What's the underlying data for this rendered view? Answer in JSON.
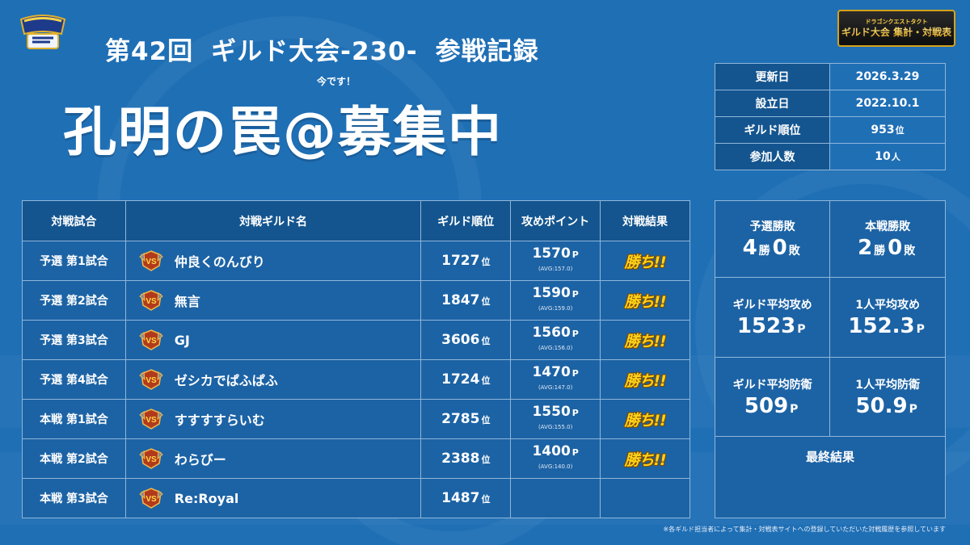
{
  "header": {
    "title_part1": "第42回",
    "title_part2": "ギルド大会-230-",
    "title_part3": "参戦記録",
    "now_label": "今です！",
    "guild_name": "孔明の罠@募集中"
  },
  "logos": {
    "left": "DRAGON QUEST TACT",
    "right_sub": "ドラゴンクエストタクト",
    "right_main": "ギルド大会 集計・対戦表"
  },
  "info": {
    "rows": [
      {
        "label": "更新日",
        "value": "2026.3.29",
        "unit": ""
      },
      {
        "label": "設立日",
        "value": "2022.10.1",
        "unit": ""
      },
      {
        "label": "ギルド順位",
        "value": "953",
        "unit": "位"
      },
      {
        "label": "参加人数",
        "value": "10",
        "unit": "人"
      }
    ]
  },
  "matches": {
    "headers": [
      "対戦試合",
      "対戦ギルド名",
      "ギルド順位",
      "攻めポイント",
      "対戦結果"
    ],
    "rank_unit": "位",
    "point_unit": "P",
    "rows": [
      {
        "match": "予選 第1試合",
        "opponent": "仲良くのんびり",
        "rank": "1727",
        "points": "1570",
        "avg": "(AVG:157.0)",
        "result": "勝ち!!"
      },
      {
        "match": "予選 第2試合",
        "opponent": "無言",
        "rank": "1847",
        "points": "1590",
        "avg": "(AVG:159.0)",
        "result": "勝ち!!"
      },
      {
        "match": "予選 第3試合",
        "opponent": "GJ",
        "rank": "3606",
        "points": "1560",
        "avg": "(AVG:156.0)",
        "result": "勝ち!!"
      },
      {
        "match": "予選 第4試合",
        "opponent": "ゼシカでぱふぱふ",
        "rank": "1724",
        "points": "1470",
        "avg": "(AVG:147.0)",
        "result": "勝ち!!"
      },
      {
        "match": "本戦 第1試合",
        "opponent": "すすすすらいむ",
        "rank": "2785",
        "points": "1550",
        "avg": "(AVG:155.0)",
        "result": "勝ち!!"
      },
      {
        "match": "本戦 第2試合",
        "opponent": "わらびー",
        "rank": "2388",
        "points": "1400",
        "avg": "(AVG:140.0)",
        "result": "勝ち!!"
      },
      {
        "match": "本戦 第3試合",
        "opponent": "Re:Royal",
        "rank": "1487",
        "points": "",
        "avg": "",
        "result": ""
      }
    ]
  },
  "stats": {
    "prelim_label": "予選勝敗",
    "prelim_wins": "4",
    "prelim_losses": "0",
    "main_label": "本戦勝敗",
    "main_wins": "2",
    "main_losses": "0",
    "win_unit": "勝",
    "loss_unit": "敗",
    "guild_avg_atk_label": "ギルド平均攻め",
    "guild_avg_atk": "1523",
    "person_avg_atk_label": "1人平均攻め",
    "person_avg_atk": "152.3",
    "guild_avg_def_label": "ギルド平均防衛",
    "guild_avg_def": "509",
    "person_avg_def_label": "1人平均防衛",
    "person_avg_def": "50.9",
    "point_unit": "P",
    "final_label": "最終結果",
    "final_value": ""
  },
  "footnote": "※各ギルド担当者によって集計・対戦表サイトへの登録していただいた対戦履歴を参照しています",
  "colors": {
    "background": "#1f6fb5",
    "header_cell": "#14558f",
    "cell": "#1c63a5",
    "border": "#8fb6da",
    "win": "#ffd21a"
  }
}
